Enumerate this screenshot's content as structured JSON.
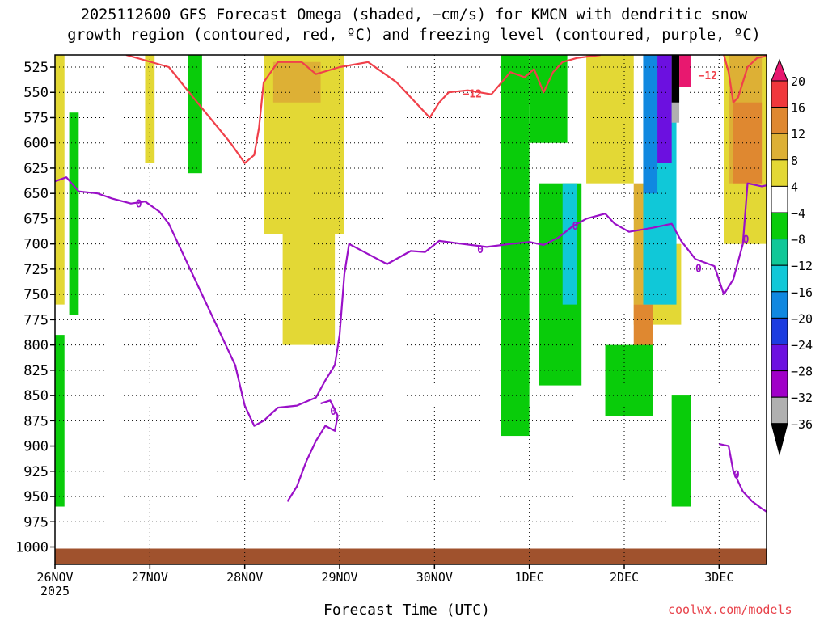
{
  "title_line1": "2025112600 GFS Forecast Omega (shaded, −cm/s) for KMCN with dendritic snow",
  "title_line2": "growth region (contoured, red, ºC) and freezing level (contoured, purple, ºC)",
  "xlabel": "Forecast Time (UTC)",
  "credit": "coolwx.com/models",
  "year_label": "2025",
  "colors": {
    "yellow": "#e3d835",
    "gold": "#ddb035",
    "orange": "#df8830",
    "red": "#f0383c",
    "magenta": "#e8186f",
    "green": "#09cc0a",
    "teal": "#10c898",
    "cyan": "#10c8d8",
    "skyblue": "#1088e0",
    "blue": "#1c3ce0",
    "purple": "#6c10e0",
    "violet": "#a000c8",
    "gray": "#b0b0b0",
    "black": "#000000",
    "ground": "#a0522d",
    "dgz_contour": "#f0404a",
    "freezing_contour": "#9a10c8"
  },
  "chart_data": {
    "type": "time-height",
    "title": "2025112600 GFS Forecast Omega (shaded, −cm/s) for KMCN with dendritic snow growth region (contoured, red, ºC) and freezing level (contoured, purple, ºC)",
    "xlabel": "Forecast Time (UTC)",
    "ylabel": "",
    "y_scale": "pressure (hPa), decreasing upward",
    "x_ticks": [
      "26NOV",
      "27NOV",
      "28NOV",
      "29NOV",
      "30NOV",
      "1DEC",
      "2DEC",
      "3DEC"
    ],
    "y_ticks": [
      525,
      550,
      575,
      600,
      625,
      650,
      675,
      700,
      725,
      750,
      775,
      800,
      825,
      850,
      875,
      900,
      925,
      950,
      975,
      1000
    ],
    "ylim": [
      1010,
      513
    ],
    "xlim_days": [
      0,
      7.5
    ],
    "grid": true,
    "colorbar": {
      "labels": [
        "20",
        "16",
        "12",
        "8",
        "4",
        "−4",
        "−8",
        "−12",
        "−16",
        "−20",
        "−24",
        "−28",
        "−32",
        "−36"
      ],
      "levels": [
        20,
        16,
        12,
        8,
        4,
        -4,
        -8,
        -12,
        -16,
        -20,
        -24,
        -28,
        -32,
        -36
      ]
    },
    "contour_labels": {
      "dgz": "−12",
      "freezing": "0"
    },
    "dgz_contour_-12C": [
      {
        "d": 0.75,
        "p": 513
      },
      {
        "d": 1.2,
        "p": 525
      },
      {
        "d": 1.5,
        "p": 560
      },
      {
        "d": 1.85,
        "p": 600
      },
      {
        "d": 2.0,
        "p": 620
      },
      {
        "d": 2.1,
        "p": 612
      },
      {
        "d": 2.15,
        "p": 585
      },
      {
        "d": 2.2,
        "p": 540
      },
      {
        "d": 2.35,
        "p": 520
      },
      {
        "d": 2.6,
        "p": 520
      },
      {
        "d": 2.75,
        "p": 532
      },
      {
        "d": 3.0,
        "p": 525
      },
      {
        "d": 3.3,
        "p": 520
      },
      {
        "d": 3.6,
        "p": 540
      },
      {
        "d": 3.8,
        "p": 560
      },
      {
        "d": 3.95,
        "p": 575
      },
      {
        "d": 4.05,
        "p": 560
      },
      {
        "d": 4.15,
        "p": 550
      },
      {
        "d": 4.35,
        "p": 548
      },
      {
        "d": 4.6,
        "p": 552
      },
      {
        "d": 4.8,
        "p": 530
      },
      {
        "d": 4.95,
        "p": 535
      },
      {
        "d": 5.05,
        "p": 527
      },
      {
        "d": 5.15,
        "p": 550
      },
      {
        "d": 5.25,
        "p": 530
      },
      {
        "d": 5.35,
        "p": 520
      },
      {
        "d": 5.5,
        "p": 516
      },
      {
        "d": 5.75,
        "p": 513
      }
    ],
    "dgz_contour_-12C_right": [
      {
        "d": 7.05,
        "p": 513
      },
      {
        "d": 7.1,
        "p": 530
      },
      {
        "d": 7.15,
        "p": 560
      },
      {
        "d": 7.2,
        "p": 555
      },
      {
        "d": 7.3,
        "p": 525
      },
      {
        "d": 7.4,
        "p": 516
      },
      {
        "d": 7.5,
        "p": 514
      }
    ],
    "freezing_level_0C": [
      {
        "d": 0.0,
        "p": 638
      },
      {
        "d": 0.12,
        "p": 634
      },
      {
        "d": 0.25,
        "p": 648
      },
      {
        "d": 0.45,
        "p": 650
      },
      {
        "d": 0.6,
        "p": 655
      },
      {
        "d": 0.8,
        "p": 660
      },
      {
        "d": 0.95,
        "p": 658
      },
      {
        "d": 1.1,
        "p": 668
      },
      {
        "d": 1.2,
        "p": 680
      },
      {
        "d": 1.3,
        "p": 700
      },
      {
        "d": 1.45,
        "p": 730
      },
      {
        "d": 1.6,
        "p": 760
      },
      {
        "d": 1.75,
        "p": 790
      },
      {
        "d": 1.9,
        "p": 820
      },
      {
        "d": 2.0,
        "p": 860
      },
      {
        "d": 2.1,
        "p": 880
      },
      {
        "d": 2.2,
        "p": 875
      },
      {
        "d": 2.35,
        "p": 862
      },
      {
        "d": 2.55,
        "p": 860
      },
      {
        "d": 2.75,
        "p": 852
      },
      {
        "d": 2.85,
        "p": 835
      },
      {
        "d": 2.95,
        "p": 820
      },
      {
        "d": 3.0,
        "p": 790
      },
      {
        "d": 3.05,
        "p": 730
      },
      {
        "d": 3.1,
        "p": 700
      },
      {
        "d": 3.3,
        "p": 710
      },
      {
        "d": 3.5,
        "p": 720
      },
      {
        "d": 3.75,
        "p": 707
      },
      {
        "d": 3.9,
        "p": 708
      },
      {
        "d": 4.05,
        "p": 697
      },
      {
        "d": 4.3,
        "p": 700
      },
      {
        "d": 4.55,
        "p": 703
      },
      {
        "d": 4.8,
        "p": 700
      },
      {
        "d": 5.0,
        "p": 698
      },
      {
        "d": 5.15,
        "p": 701
      },
      {
        "d": 5.3,
        "p": 694
      },
      {
        "d": 5.45,
        "p": 683
      },
      {
        "d": 5.6,
        "p": 675
      },
      {
        "d": 5.8,
        "p": 670
      },
      {
        "d": 5.9,
        "p": 680
      },
      {
        "d": 6.05,
        "p": 688
      },
      {
        "d": 6.3,
        "p": 684
      },
      {
        "d": 6.5,
        "p": 680
      },
      {
        "d": 6.6,
        "p": 697
      },
      {
        "d": 6.75,
        "p": 715
      },
      {
        "d": 6.95,
        "p": 722
      },
      {
        "d": 7.05,
        "p": 750
      },
      {
        "d": 7.15,
        "p": 735
      },
      {
        "d": 7.25,
        "p": 700
      },
      {
        "d": 7.3,
        "p": 640
      },
      {
        "d": 7.45,
        "p": 643
      },
      {
        "d": 7.5,
        "p": 642
      }
    ],
    "freezing_level_0C_lower": [
      {
        "d": 2.45,
        "p": 955
      },
      {
        "d": 2.55,
        "p": 940
      },
      {
        "d": 2.65,
        "p": 915
      },
      {
        "d": 2.75,
        "p": 895
      },
      {
        "d": 2.85,
        "p": 880
      },
      {
        "d": 2.95,
        "p": 885
      },
      {
        "d": 2.98,
        "p": 870
      },
      {
        "d": 2.9,
        "p": 855
      },
      {
        "d": 2.8,
        "p": 858
      }
    ],
    "freezing_level_0C_right": [
      {
        "d": 7.0,
        "p": 898
      },
      {
        "d": 7.1,
        "p": 900
      },
      {
        "d": 7.15,
        "p": 925
      },
      {
        "d": 7.25,
        "p": 945
      },
      {
        "d": 7.35,
        "p": 955
      },
      {
        "d": 7.45,
        "p": 962
      },
      {
        "d": 7.5,
        "p": 965
      }
    ],
    "omega_regions": [
      {
        "level": 4,
        "d0": 0.0,
        "d1": 0.1,
        "p_top": 513,
        "p_bot": 760
      },
      {
        "level": 4,
        "d0": 0.95,
        "d1": 1.05,
        "p_top": 513,
        "p_bot": 620
      },
      {
        "level": 4,
        "d0": 2.2,
        "d1": 3.05,
        "p_top": 513,
        "p_bot": 690
      },
      {
        "level": 4,
        "d0": 2.4,
        "d1": 2.95,
        "p_top": 690,
        "p_bot": 800
      },
      {
        "level": 4,
        "d0": 5.6,
        "d1": 6.1,
        "p_top": 513,
        "p_bot": 640
      },
      {
        "level": 4,
        "d0": 6.1,
        "d1": 6.6,
        "p_top": 700,
        "p_bot": 780
      },
      {
        "level": 4,
        "d0": 7.05,
        "d1": 7.5,
        "p_top": 513,
        "p_bot": 700
      },
      {
        "level": 8,
        "d0": 2.3,
        "d1": 2.8,
        "p_top": 520,
        "p_bot": 560
      },
      {
        "level": 8,
        "d0": 6.1,
        "d1": 6.45,
        "p_top": 640,
        "p_bot": 760
      },
      {
        "level": 8,
        "d0": 7.1,
        "d1": 7.45,
        "p_top": 513,
        "p_bot": 640
      },
      {
        "level": 12,
        "d0": 7.15,
        "d1": 7.45,
        "p_top": 560,
        "p_bot": 640
      },
      {
        "level": 12,
        "d0": 6.1,
        "d1": 6.3,
        "p_top": 760,
        "p_bot": 840
      },
      {
        "level": -4,
        "d0": 0.15,
        "d1": 0.25,
        "p_top": 570,
        "p_bot": 770
      },
      {
        "level": -4,
        "d0": 1.4,
        "d1": 1.55,
        "p_top": 513,
        "p_bot": 630
      },
      {
        "level": -4,
        "d0": 4.7,
        "d1": 5.0,
        "p_top": 513,
        "p_bot": 890
      },
      {
        "level": -4,
        "d0": 5.1,
        "d1": 5.55,
        "p_top": 640,
        "p_bot": 840
      },
      {
        "level": -4,
        "d0": 5.0,
        "d1": 5.4,
        "p_top": 513,
        "p_bot": 600
      },
      {
        "level": -4,
        "d0": 5.8,
        "d1": 6.3,
        "p_top": 800,
        "p_bot": 870
      },
      {
        "level": -4,
        "d0": 6.5,
        "d1": 6.7,
        "p_top": 850,
        "p_bot": 960
      },
      {
        "level": -4,
        "d0": 0.0,
        "d1": 0.1,
        "p_top": 790,
        "p_bot": 960
      },
      {
        "level": -12,
        "d0": 5.35,
        "d1": 5.5,
        "p_top": 640,
        "p_bot": 760
      },
      {
        "level": -12,
        "d0": 6.2,
        "d1": 6.55,
        "p_top": 513,
        "p_bot": 760
      },
      {
        "level": -16,
        "d0": 6.2,
        "d1": 6.35,
        "p_top": 513,
        "p_bot": 650
      },
      {
        "level": -24,
        "d0": 6.35,
        "d1": 6.5,
        "p_top": 513,
        "p_bot": 620
      },
      {
        "level": -32,
        "d0": 6.5,
        "d1": 6.58,
        "p_top": 513,
        "p_bot": 580
      },
      {
        "level": -36,
        "d0": 6.5,
        "d1": 6.58,
        "p_top": 513,
        "p_bot": 560
      },
      {
        "level": 20,
        "d0": 6.58,
        "d1": 6.7,
        "p_top": 513,
        "p_bot": 545
      }
    ],
    "ground_surface_hPa": 1000
  }
}
